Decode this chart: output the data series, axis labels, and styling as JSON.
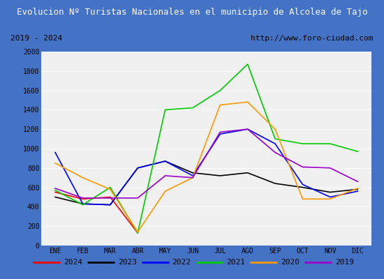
{
  "title": "Evolucion Nº Turistas Nacionales en el municipio de Alcolea de Tajo",
  "subtitle_left": "2019 - 2024",
  "subtitle_right": "http://www.foro-ciudad.com",
  "months": [
    "ENE",
    "FEB",
    "MAR",
    "ABR",
    "MAY",
    "JUN",
    "JUL",
    "AGO",
    "SEP",
    "OCT",
    "NOV",
    "DIC"
  ],
  "series": {
    "2024": {
      "color": "#ff0000",
      "data": [
        550,
        480,
        500,
        130,
        null,
        null,
        null,
        null,
        null,
        null,
        null,
        null
      ]
    },
    "2023": {
      "color": "#000000",
      "data": [
        500,
        430,
        420,
        800,
        870,
        750,
        720,
        750,
        640,
        600,
        550,
        580
      ]
    },
    "2022": {
      "color": "#0000ff",
      "data": [
        960,
        430,
        420,
        800,
        870,
        720,
        1150,
        1200,
        1050,
        630,
        500,
        560
      ]
    },
    "2021": {
      "color": "#00cc00",
      "data": [
        570,
        420,
        600,
        130,
        1400,
        1420,
        1600,
        1870,
        1100,
        1050,
        1050,
        970
      ]
    },
    "2020": {
      "color": "#ff9900",
      "data": [
        850,
        700,
        580,
        140,
        560,
        700,
        1450,
        1480,
        1200,
        480,
        480,
        590
      ]
    },
    "2019": {
      "color": "#9900cc",
      "data": [
        590,
        490,
        490,
        490,
        720,
        700,
        1170,
        1200,
        960,
        810,
        800,
        660
      ]
    }
  },
  "ylim": [
    0,
    2000
  ],
  "yticks": [
    0,
    200,
    400,
    600,
    800,
    1000,
    1200,
    1400,
    1600,
    1800,
    2000
  ],
  "title_bg_color": "#4472c4",
  "title_text_color": "#ffffff",
  "plot_bg_color": "#f0f0f0",
  "grid_color": "#ffffff",
  "border_color": "#4472c4",
  "legend_order": [
    "2024",
    "2023",
    "2022",
    "2021",
    "2020",
    "2019"
  ]
}
